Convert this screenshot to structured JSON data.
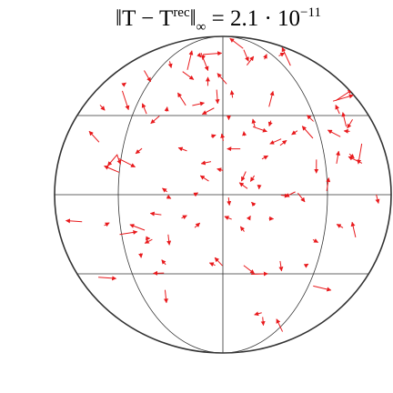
{
  "title": {
    "lhs": "‖T − T",
    "sup": "rec",
    "close": "‖",
    "sub": "∞",
    "rhs": " = 2.1 · 10",
    "exp": "−11"
  }
}
